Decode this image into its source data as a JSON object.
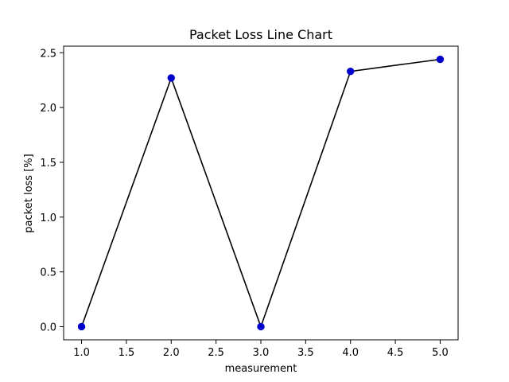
{
  "chart_data": {
    "type": "line",
    "title": "Packet Loss Line Chart",
    "xlabel": "measurement",
    "ylabel": "packet loss [%]",
    "x": [
      1.0,
      2.0,
      3.0,
      4.0,
      5.0
    ],
    "series": [
      {
        "values": [
          0.0,
          2.27,
          0.0,
          2.33,
          2.44
        ],
        "line_color": "#000000",
        "marker_color": "#0000cc",
        "marker": "circle"
      }
    ],
    "xlim": [
      0.8,
      5.2
    ],
    "ylim": [
      -0.12,
      2.56
    ],
    "xticks": [
      1.0,
      1.5,
      2.0,
      2.5,
      3.0,
      3.5,
      4.0,
      4.5,
      5.0
    ],
    "xtick_labels": [
      "1.0",
      "1.5",
      "2.0",
      "2.5",
      "3.0",
      "3.5",
      "4.0",
      "4.5",
      "5.0"
    ],
    "yticks": [
      0.0,
      0.5,
      1.0,
      1.5,
      2.0,
      2.5
    ],
    "ytick_labels": [
      "0.0",
      "0.5",
      "1.0",
      "1.5",
      "2.0",
      "2.5"
    ],
    "grid": false,
    "legend": false
  }
}
